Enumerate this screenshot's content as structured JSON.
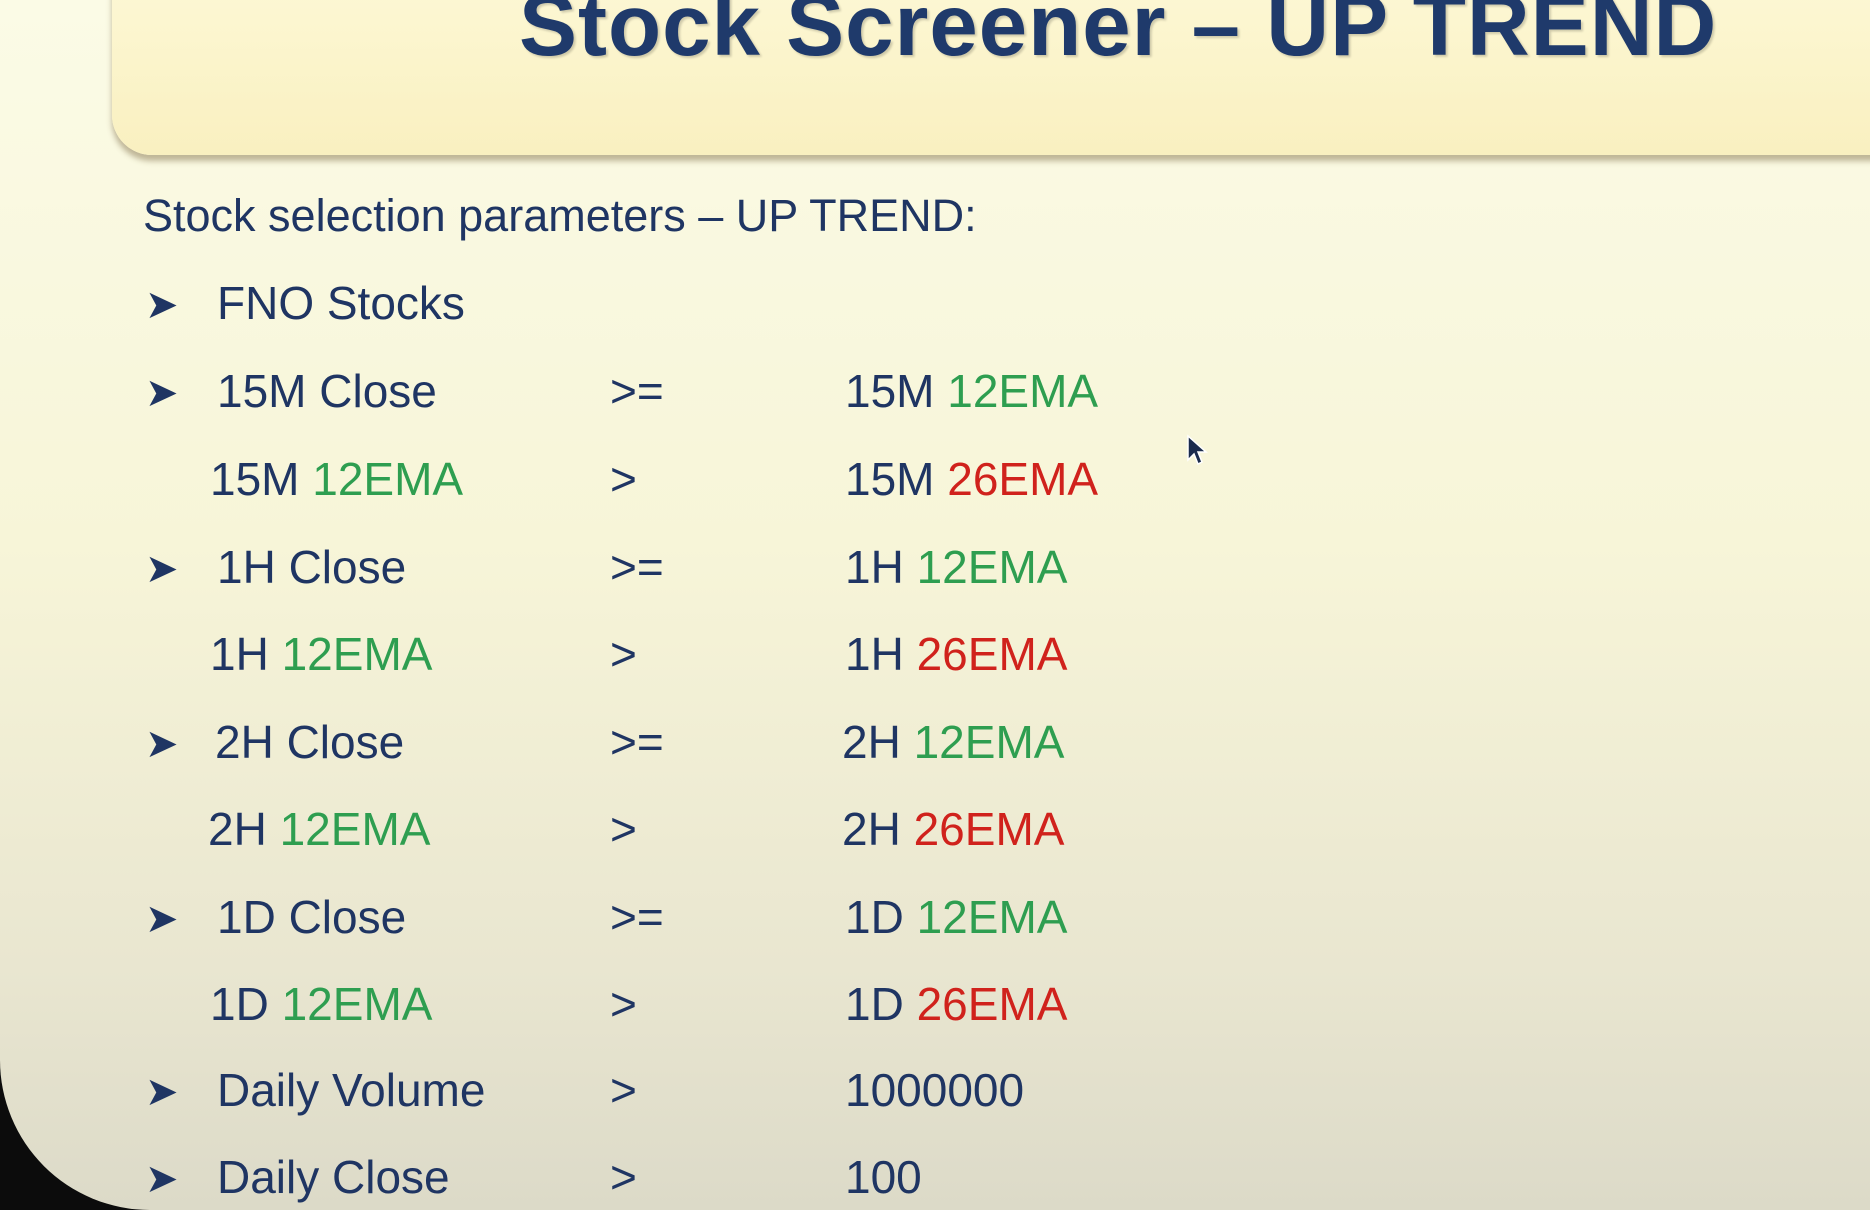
{
  "title": "Stock Screener – UP TREND",
  "subtitle": "Stock selection parameters – UP TREND:",
  "bullet_glyph": "➤",
  "rows": [
    {
      "bullet": true,
      "left": "FNO Stocks"
    },
    {
      "bullet": true,
      "left": "15M Close",
      "op": ">=",
      "right_prefix": "15M",
      "right_ema": "12EMA",
      "right_color": "green"
    },
    {
      "bullet": false,
      "left_prefix": "15M",
      "left_ema": "12EMA",
      "op": ">",
      "right_prefix": "15M",
      "right_ema": "26EMA",
      "right_color": "red"
    },
    {
      "bullet": true,
      "left": "1H Close",
      "op": ">=",
      "right_prefix": "1H",
      "right_ema": "12EMA",
      "right_color": "green"
    },
    {
      "bullet": false,
      "left_prefix": "1H",
      "left_ema": "12EMA",
      "op": ">",
      "right_prefix": "1H",
      "right_ema": "26EMA",
      "right_color": "red"
    },
    {
      "bullet": true,
      "left": "2H Close",
      "op": ">=",
      "right_prefix": "2H",
      "right_ema": "12EMA",
      "right_color": "green"
    },
    {
      "bullet": false,
      "left_prefix": "2H",
      "left_ema": "12EMA",
      "op": ">",
      "right_prefix": "2H",
      "right_ema": "26EMA",
      "right_color": "red"
    },
    {
      "bullet": true,
      "left": "1D Close",
      "op": ">=",
      "right_prefix": "1D",
      "right_ema": "12EMA",
      "right_color": "green"
    },
    {
      "bullet": false,
      "left_prefix": "1D",
      "left_ema": "12EMA",
      "op": ">",
      "right_prefix": "1D",
      "right_ema": "26EMA",
      "right_color": "red"
    },
    {
      "bullet": true,
      "left": "Daily Volume",
      "op": ">",
      "right_value": "1000000"
    },
    {
      "bullet": true,
      "left": "Daily Close",
      "op": ">",
      "right_value": "100"
    }
  ],
  "colors": {
    "title": "#1f3a6b",
    "text": "#1f3563",
    "green": "#2e9e50",
    "red": "#d0221c"
  }
}
